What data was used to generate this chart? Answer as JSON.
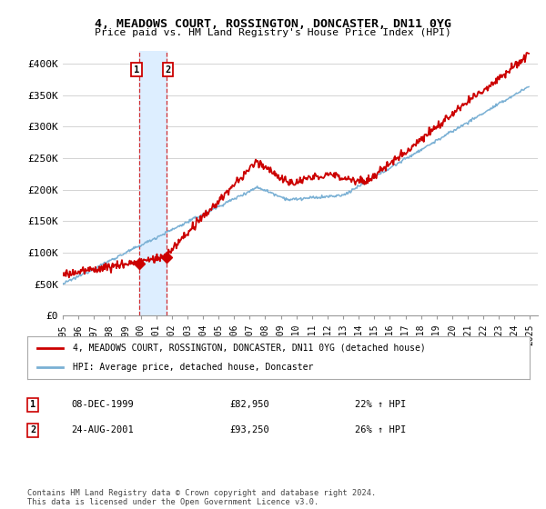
{
  "title": "4, MEADOWS COURT, ROSSINGTON, DONCASTER, DN11 0YG",
  "subtitle": "Price paid vs. HM Land Registry's House Price Index (HPI)",
  "legend_line1": "4, MEADOWS COURT, ROSSINGTON, DONCASTER, DN11 0YG (detached house)",
  "legend_line2": "HPI: Average price, detached house, Doncaster",
  "sale1_date": "08-DEC-1999",
  "sale1_price": 82950,
  "sale1_label": "22% ↑ HPI",
  "sale1_year": 1999.92,
  "sale2_date": "24-AUG-2001",
  "sale2_price": 93250,
  "sale2_label": "26% ↑ HPI",
  "sale2_year": 2001.64,
  "ylabel_ticks": [
    0,
    50000,
    100000,
    150000,
    200000,
    250000,
    300000,
    350000,
    400000
  ],
  "ylabel_labels": [
    "£0",
    "£50K",
    "£100K",
    "£150K",
    "£200K",
    "£250K",
    "£300K",
    "£350K",
    "£400K"
  ],
  "xmin": 1995.0,
  "xmax": 2025.5,
  "ymin": 0,
  "ymax": 420000,
  "red_color": "#cc0000",
  "blue_color": "#7ab0d4",
  "span_color": "#ddeeff",
  "footnote": "Contains HM Land Registry data © Crown copyright and database right 2024.\nThis data is licensed under the Open Government Licence v3.0."
}
